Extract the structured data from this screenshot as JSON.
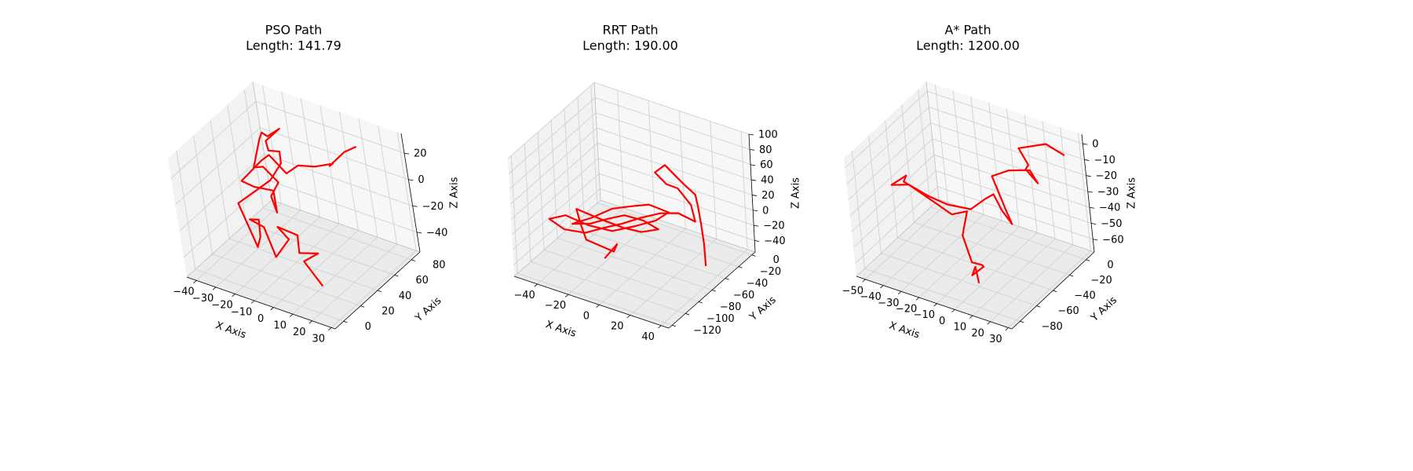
{
  "chart_data": [
    {
      "type": "line3d",
      "title": "PSO Path",
      "subtitle": "Length: 141.79",
      "xlabel": "X Axis",
      "ylabel": "Y Axis",
      "zlabel": "Z Axis",
      "xlim": [
        -45,
        32
      ],
      "ylim": [
        -10,
        90
      ],
      "zlim": [
        -55,
        35
      ],
      "xticks": [
        -40,
        -30,
        -20,
        -10,
        0,
        10,
        20,
        30
      ],
      "yticks": [
        0,
        20,
        40,
        60,
        80
      ],
      "zticks": [
        -40,
        -20,
        0,
        20
      ],
      "grid": true,
      "line_color": "#ff0000",
      "series": [
        {
          "x": [
            14,
            8,
            10,
            4,
            -4,
            -10,
            -8,
            -8,
            -10,
            -16,
            -10,
            -16,
            -14,
            -22,
            -12,
            -10,
            -13,
            -20,
            -25,
            -25,
            -30,
            -35,
            -38,
            -36,
            -34,
            -28,
            -30,
            -26,
            -24,
            -28,
            -30,
            -26,
            -18,
            -10,
            -4,
            4,
            12,
            8,
            14,
            20
          ],
          "y": [
            18,
            14,
            26,
            18,
            34,
            26,
            32,
            16,
            12,
            10,
            8,
            18,
            10,
            12,
            30,
            40,
            46,
            48,
            56,
            72,
            68,
            72,
            74,
            60,
            66,
            68,
            62,
            58,
            54,
            42,
            34,
            50,
            44,
            44,
            46,
            48,
            52,
            56,
            62,
            64
          ],
          "z": [
            -48,
            -30,
            -30,
            -28,
            -28,
            -20,
            -32,
            -36,
            -12,
            -8,
            -4,
            -26,
            -28,
            0,
            12,
            20,
            24,
            20,
            20,
            20,
            14,
            12,
            4,
            -8,
            -10,
            -20,
            -28,
            -36,
            -16,
            -8,
            0,
            8,
            20,
            10,
            18,
            20,
            24,
            18,
            28,
            34
          ]
        }
      ]
    },
    {
      "type": "line3d",
      "title": "RRT Path",
      "subtitle": "Length: 190.00",
      "xlabel": "X Axis",
      "ylabel": "Y Axis",
      "zlabel": "Z Axis",
      "xlim": [
        -55,
        45
      ],
      "ylim": [
        -125,
        5
      ],
      "zlim": [
        -55,
        100
      ],
      "xticks": [
        -40,
        -20,
        0,
        20,
        40
      ],
      "yticks": [
        -120,
        -100,
        -80,
        -60,
        -40,
        -20,
        0
      ],
      "zticks": [
        -40,
        -20,
        0,
        20,
        40,
        60,
        80,
        100
      ],
      "grid": true,
      "line_color": "#ff0000",
      "series": [
        {
          "x": [
            -20,
            -15,
            -10,
            -25,
            -30,
            -35,
            -25,
            -15,
            -5,
            5,
            0,
            -10,
            -20,
            -30,
            -40,
            -30,
            -20,
            -10,
            0,
            10,
            5,
            -5,
            -15,
            -25,
            -35,
            -45,
            -40,
            -30,
            -20,
            -10,
            0,
            10,
            20,
            30,
            25,
            15,
            5,
            -5,
            0,
            10,
            20,
            25,
            30,
            35,
            40
          ],
          "y": [
            -70,
            -62,
            -78,
            -84,
            -80,
            -74,
            -60,
            -52,
            -48,
            -45,
            -55,
            -60,
            -62,
            -66,
            -70,
            -64,
            -55,
            -50,
            -46,
            -40,
            -48,
            -56,
            -68,
            -80,
            -90,
            -92,
            -82,
            -74,
            -70,
            -64,
            -58,
            -52,
            -48,
            -46,
            -40,
            -36,
            -30,
            -24,
            -20,
            -18,
            -22,
            -30,
            -38,
            -46,
            -56
          ],
          "z": [
            -50,
            -34,
            -28,
            -18,
            -4,
            8,
            -10,
            -20,
            -22,
            -14,
            2,
            6,
            -4,
            -14,
            -18,
            -8,
            4,
            10,
            16,
            8,
            0,
            -8,
            -12,
            -2,
            12,
            2,
            -16,
            -20,
            -10,
            -2,
            8,
            16,
            20,
            14,
            28,
            40,
            34,
            38,
            48,
            30,
            24,
            18,
            6,
            -12,
            -30
          ]
        }
      ]
    },
    {
      "type": "line3d",
      "title": "A* Path",
      "subtitle": "Length: 1200.00",
      "xlabel": "X Axis",
      "ylabel": "Y Axis",
      "zlabel": "Z Axis",
      "xlim": [
        -55,
        32
      ],
      "ylim": [
        -90,
        10
      ],
      "zlim": [
        -68,
        6
      ],
      "xticks": [
        -50,
        -40,
        -30,
        -20,
        -10,
        0,
        10,
        20,
        30
      ],
      "yticks": [
        -80,
        -60,
        -40,
        -20,
        0
      ],
      "zticks": [
        -60,
        -50,
        -40,
        -30,
        -20,
        -10,
        0
      ],
      "grid": true,
      "line_color": "#ff0000",
      "series": [
        {
          "x": [
            0,
            2,
            6,
            10,
            4,
            -6,
            -14,
            -12,
            -20,
            -30,
            -40,
            -50,
            -42,
            -48,
            -34,
            -26,
            -16,
            -10,
            -4,
            2,
            6,
            0,
            -8,
            -2,
            8,
            14,
            12,
            16,
            6,
            20,
            28
          ],
          "y": [
            -60,
            -66,
            -78,
            -72,
            -62,
            -54,
            -46,
            -42,
            -44,
            -48,
            -50,
            -50,
            -48,
            -40,
            -40,
            -36,
            -30,
            -24,
            -26,
            -30,
            -28,
            -22,
            -18,
            -10,
            -6,
            -10,
            -18,
            -22,
            -12,
            -8,
            -4
          ],
          "z": [
            -66,
            -52,
            -50,
            -46,
            -52,
            -58,
            -48,
            -34,
            -38,
            -30,
            -24,
            -28,
            -20,
            -30,
            -34,
            -38,
            -40,
            -34,
            -28,
            -34,
            -42,
            -38,
            -22,
            -20,
            -18,
            -22,
            -10,
            -4,
            -2,
            4,
            -2
          ]
        }
      ]
    }
  ]
}
